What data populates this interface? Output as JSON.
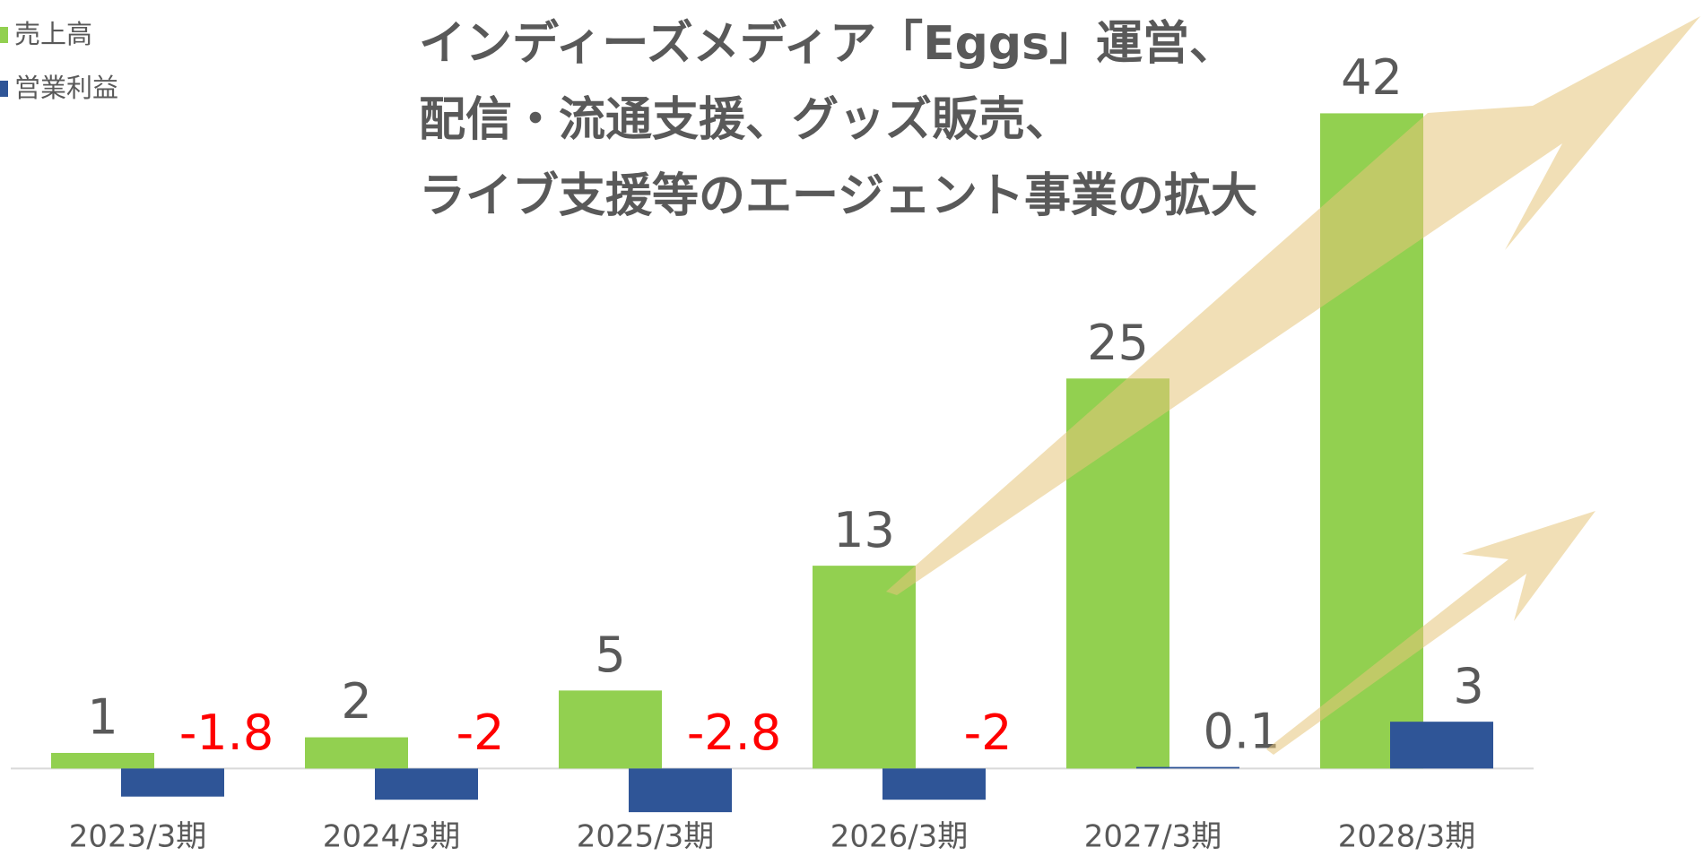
{
  "chart_data": {
    "type": "bar",
    "title": [
      "インディーズメディア「Eggs」運営、",
      "配信・流通支援、グッズ販売、",
      "ライブ支援等のエージェント事業の拡大"
    ],
    "categories": [
      "2023/3期",
      "2024/3期",
      "2025/3期",
      "2026/3期",
      "2027/3期",
      "2028/3期"
    ],
    "series": [
      {
        "name": "売上高",
        "color": "#92d050",
        "values": [
          1,
          2,
          5,
          13,
          25,
          42
        ]
      },
      {
        "name": "営業利益",
        "color": "#2f5597",
        "values": [
          -1.8,
          -2,
          -2.8,
          -2,
          0.1,
          3
        ]
      }
    ],
    "ylim": [
      -4,
      48
    ],
    "negative_label_color": "#ff0000",
    "legend": "top-left"
  }
}
